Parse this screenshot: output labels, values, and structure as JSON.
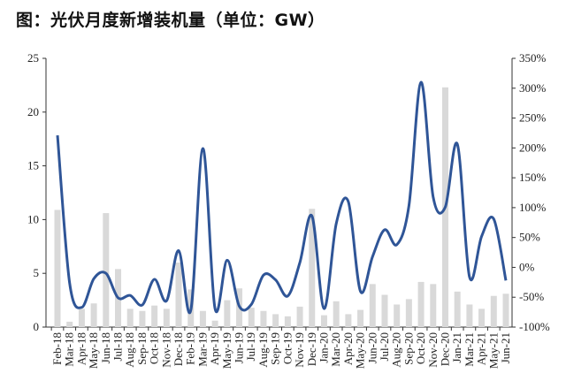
{
  "title": "图：光伏月度新增装机量（单位：GW）",
  "chart_data": {
    "type": "bar+line",
    "title": "图：光伏月度新增装机量（单位：GW）",
    "categories": [
      "Feb-18",
      "Mar-18",
      "Apr-18",
      "May-18",
      "Jun-18",
      "Jul-18",
      "Aug-18",
      "Sep-18",
      "Oct-18",
      "Nov-18",
      "Dec-18",
      "Feb-19",
      "Mar-19",
      "Apr-19",
      "May-19",
      "Jun-19",
      "Jul-19",
      "Aug-19",
      "Sep-19",
      "Oct-19",
      "Nov-19",
      "Dec-19",
      "Jan-20",
      "Mar-20",
      "Apr-20",
      "May-20",
      "Jun-20",
      "Jul-20",
      "Aug-20",
      "Sep-20",
      "Oct-20",
      "Nov-20",
      "Dec-20",
      "Jan-21",
      "Mar-21",
      "Apr-21",
      "May-21",
      "Jun-21"
    ],
    "series": [
      {
        "type": "bar",
        "axis": "left",
        "color": "#d9d9d9",
        "values": [
          10.9,
          0.5,
          1.7,
          2.2,
          10.6,
          5.4,
          1.7,
          1.5,
          2.0,
          1.7,
          6.0,
          3.5,
          1.5,
          0.6,
          2.5,
          3.6,
          1.8,
          1.5,
          1.2,
          1.0,
          1.9,
          11.0,
          1.1,
          2.4,
          1.2,
          1.6,
          4.0,
          3.0,
          2.1,
          2.6,
          4.2,
          4.0,
          22.3,
          3.3,
          2.1,
          1.7,
          2.9,
          3.1
        ]
      },
      {
        "type": "line",
        "axis": "right",
        "color": "#2f5597",
        "unit": "%",
        "values": [
          221,
          -26,
          -67,
          -19,
          -10,
          -51,
          -47,
          -63,
          -20,
          -56,
          28,
          -72,
          199,
          -69,
          12,
          -65,
          -62,
          -13,
          -21,
          -48,
          8,
          86,
          -69,
          73,
          110,
          -40,
          18,
          63,
          38,
          103,
          310,
          118,
          101,
          206,
          -16,
          52,
          81,
          -22
        ]
      }
    ],
    "left_axis": {
      "ylim": [
        0,
        25
      ],
      "ticks": [
        "0",
        "5",
        "10",
        "15",
        "20",
        "25"
      ]
    },
    "right_axis": {
      "ylim": [
        -100,
        350
      ],
      "ticks": [
        "-100%",
        "-50%",
        "0%",
        "50%",
        "100%",
        "150%",
        "200%",
        "250%",
        "300%",
        "350%"
      ]
    },
    "grid": false,
    "legend": "none"
  }
}
